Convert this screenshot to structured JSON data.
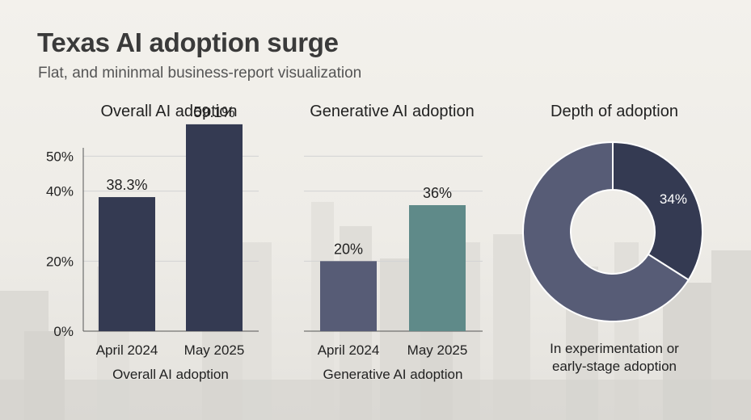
{
  "title": "Texas AI adoption surge",
  "subtitle": "Flat, and mininmal business-report visualization",
  "colors": {
    "dark_navy": "#343a52",
    "slate": "#575c76",
    "teal": "#5f8a89",
    "grid": "#d3d3d3",
    "axis": "#555555"
  },
  "panels": {
    "overall": {
      "title": "Overall AI adoption",
      "xlabel": "Overall AI adoption"
    },
    "generative": {
      "title": "Generative AI adoption",
      "xlabel": "Generative AI adoption"
    },
    "depth": {
      "title": "Depth of adoption",
      "caption_line1": "In experimentation or",
      "caption_line2": "early-stage adoption"
    }
  },
  "chart_data": [
    {
      "type": "bar",
      "title": "Overall AI adoption",
      "xlabel": "Overall AI adoption",
      "ylabel": "",
      "categories": [
        "April 2024",
        "May 2025"
      ],
      "values": [
        38.3,
        59.1
      ],
      "value_labels": [
        "38.3%",
        "59.1%"
      ],
      "bar_colors": [
        "#343a52",
        "#343a52"
      ],
      "ylim": [
        0,
        60
      ],
      "yticks": [
        0,
        20,
        40,
        50
      ],
      "ytick_labels": [
        "0%",
        "20%",
        "40%",
        "50%"
      ],
      "grid": true
    },
    {
      "type": "bar",
      "title": "Generative AI adoption",
      "xlabel": "Generative AI adoption",
      "ylabel": "",
      "categories": [
        "April 2024",
        "May 2025"
      ],
      "values": [
        20,
        36
      ],
      "value_labels": [
        "20%",
        "36%"
      ],
      "bar_colors": [
        "#575c76",
        "#5f8a89"
      ],
      "ylim": [
        0,
        60
      ],
      "grid": true
    },
    {
      "type": "pie",
      "title": "Depth of adoption",
      "donut": true,
      "slices": [
        {
          "label": "34%",
          "value": 34,
          "color": "#343a52"
        },
        {
          "label": "",
          "value": 66,
          "color": "#575c76"
        }
      ]
    }
  ]
}
